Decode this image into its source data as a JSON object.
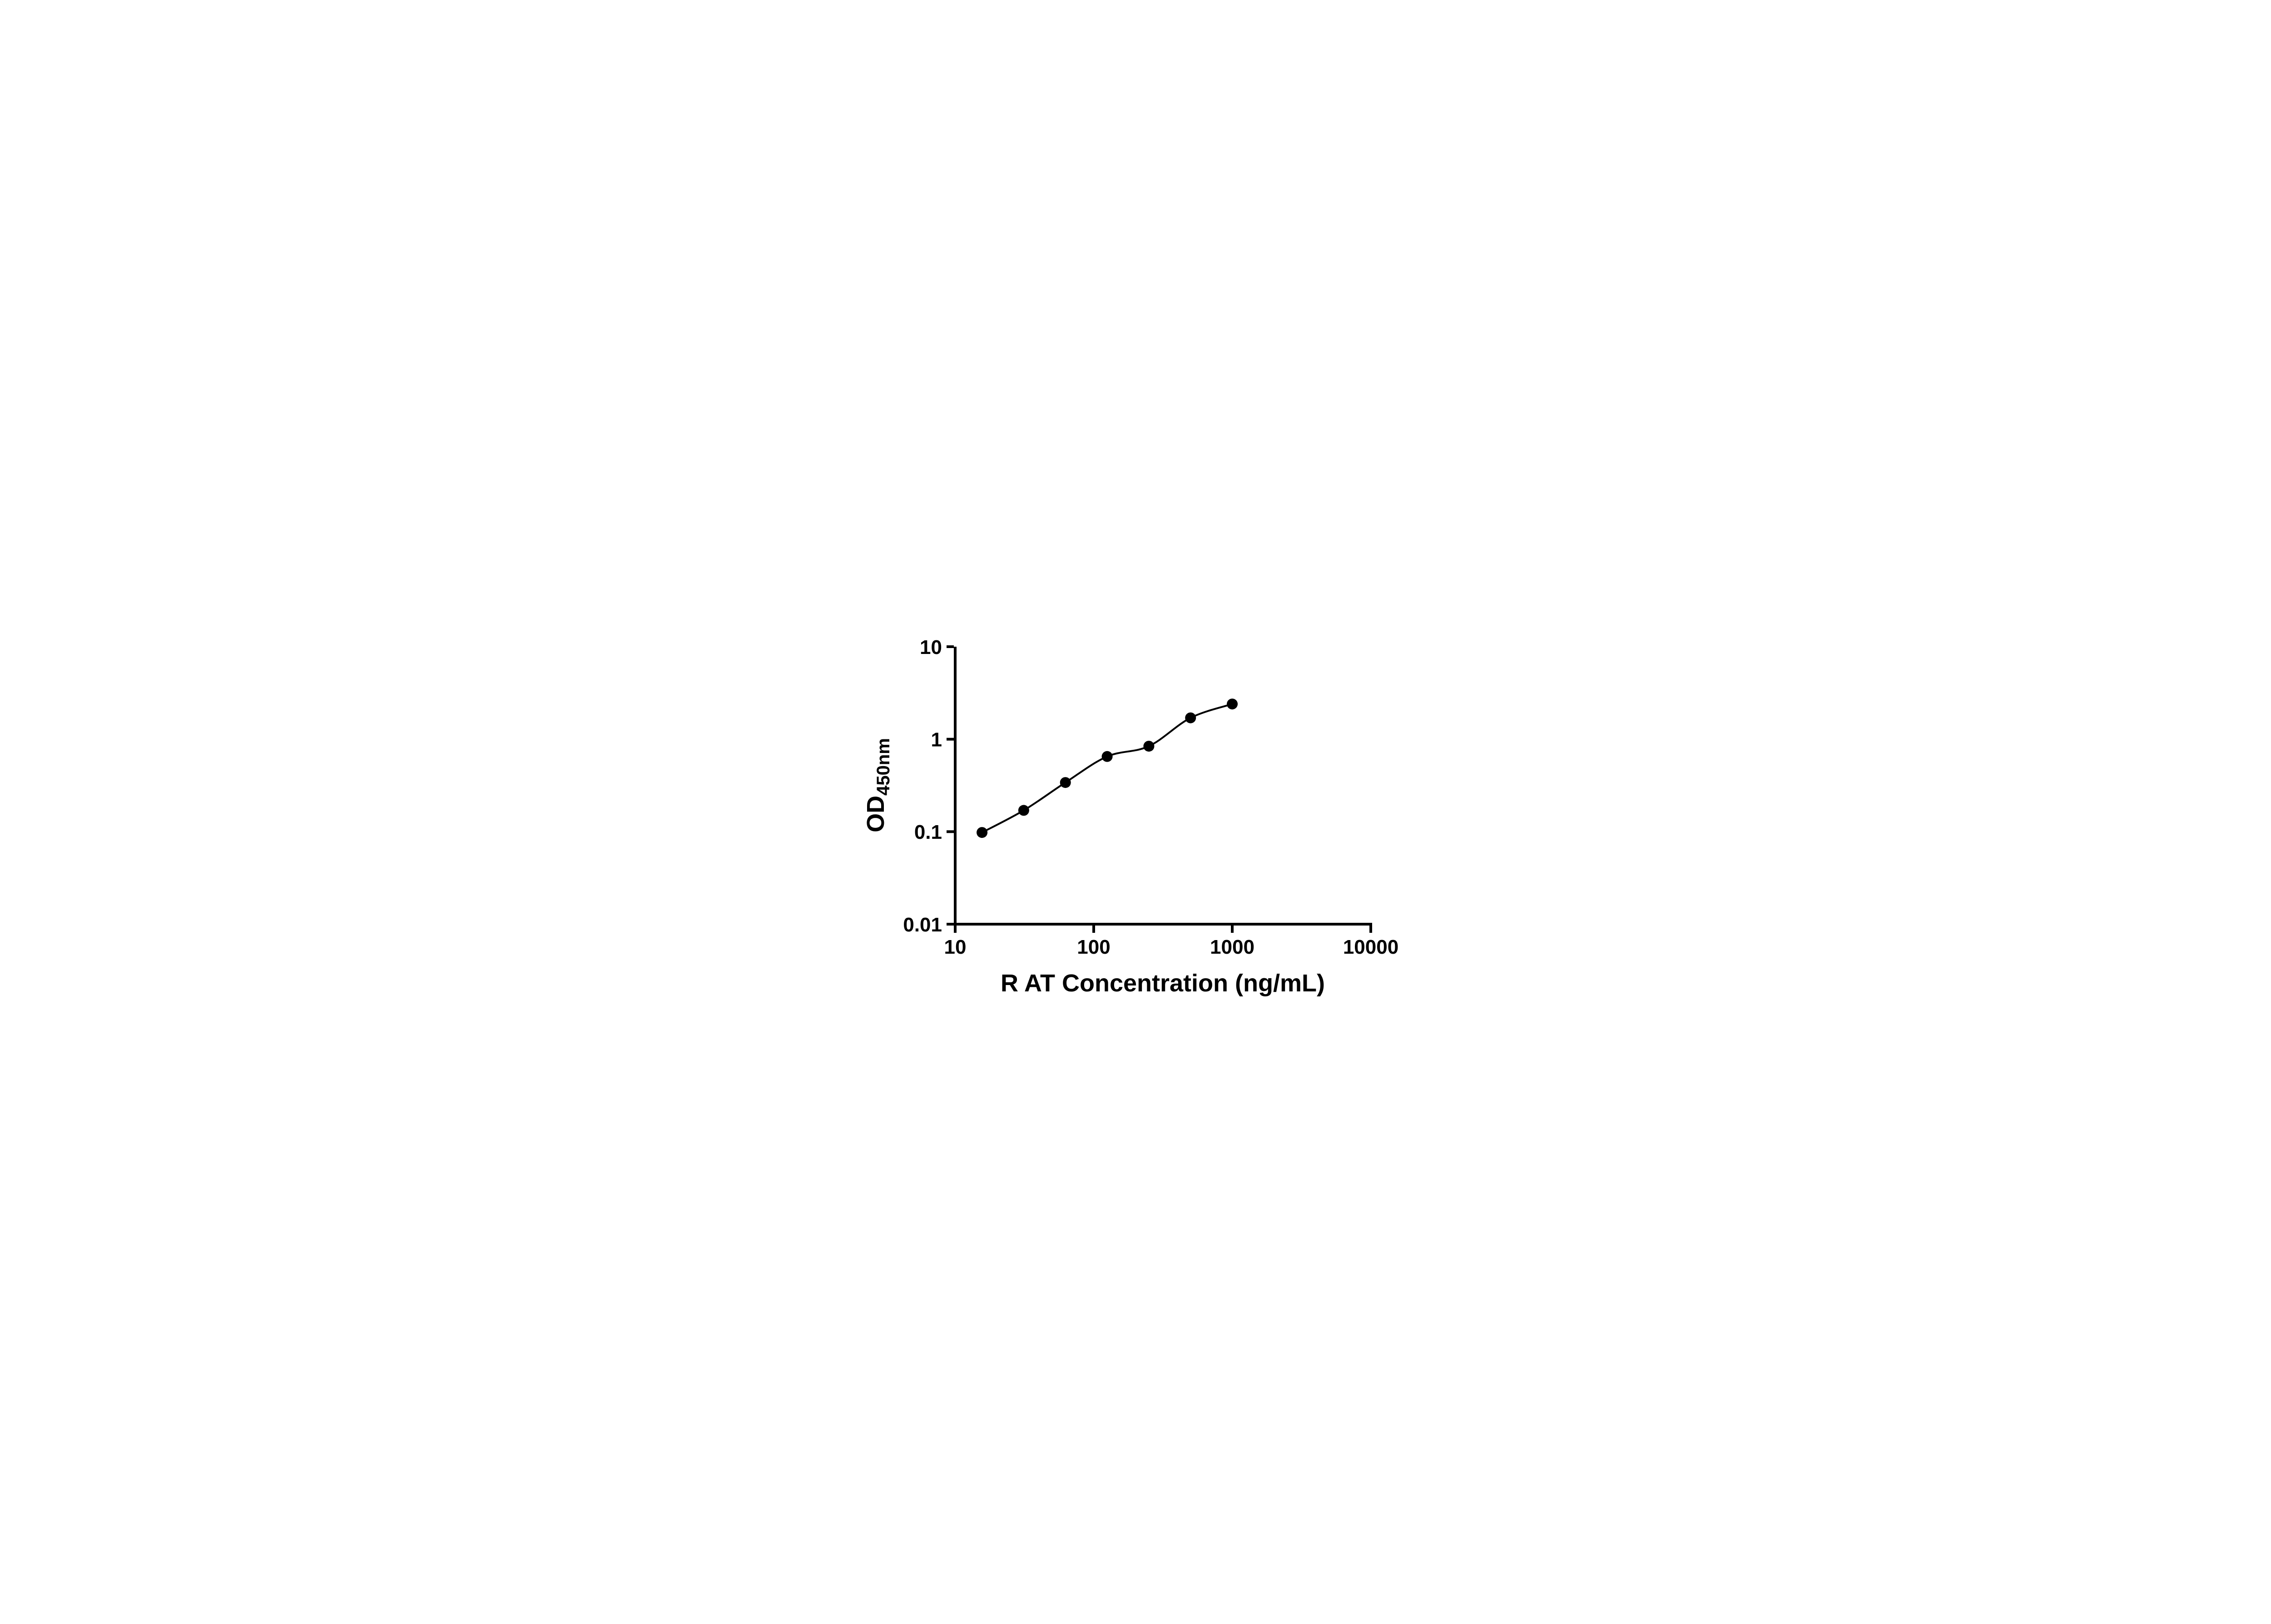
{
  "chart_data": {
    "type": "scatter",
    "title": "",
    "xlabel": "R AT Concentration (ng/mL)",
    "ylabel_main": "OD",
    "ylabel_sub": "450nm",
    "x": [
      15.625,
      31.25,
      62.5,
      125,
      250,
      500,
      1000
    ],
    "y": [
      0.098,
      0.17,
      0.34,
      0.65,
      0.84,
      1.7,
      2.4
    ],
    "x_scale": "log",
    "y_scale": "log",
    "xlim": [
      10,
      10000
    ],
    "ylim": [
      0.01,
      10
    ],
    "x_ticks": [
      10,
      100,
      1000,
      10000
    ],
    "x_tick_labels": [
      "10",
      "100",
      "1000",
      "10000"
    ],
    "y_ticks": [
      0.01,
      0.1,
      1,
      10
    ],
    "y_tick_labels": [
      "0.01",
      "0.1",
      "1",
      "10"
    ],
    "grid": false,
    "legend": null,
    "has_fit_curve": true,
    "marker_color": "#000000",
    "line_color": "#000000",
    "background": "#ffffff"
  }
}
